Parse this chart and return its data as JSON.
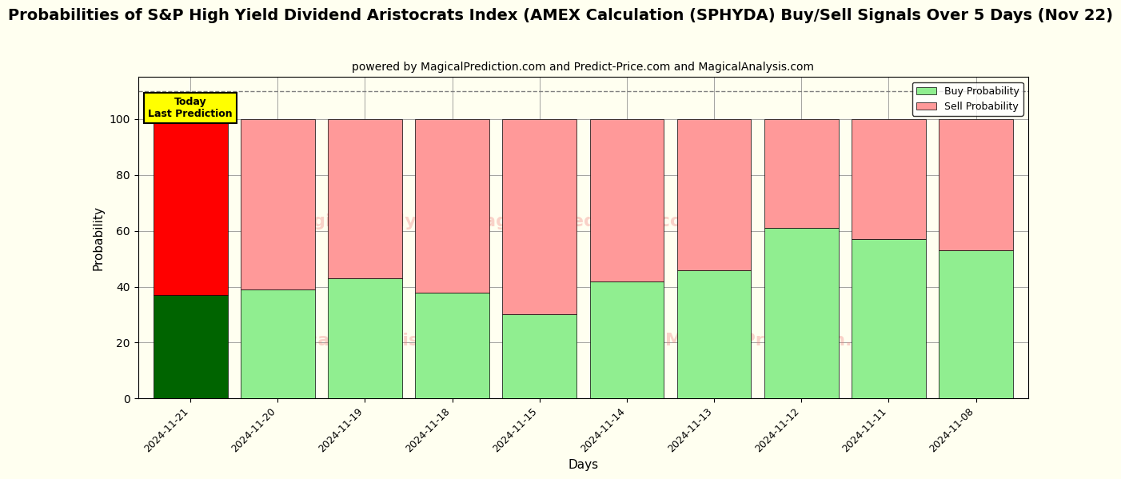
{
  "title": "Probabilities of S&P High Yield Dividend Aristocrats Index (AMEX Calculation (SPHYDA) Buy/Sell Signals Over 5 Days (Nov 22)",
  "subtitle": "powered by MagicalPrediction.com and Predict-Price.com and MagicalAnalysis.com",
  "xlabel": "Days",
  "ylabel": "Probability",
  "categories": [
    "2024-11-21",
    "2024-11-20",
    "2024-11-19",
    "2024-11-18",
    "2024-11-15",
    "2024-11-14",
    "2024-11-13",
    "2024-11-12",
    "2024-11-11",
    "2024-11-08"
  ],
  "buy_values": [
    37,
    39,
    43,
    38,
    30,
    42,
    46,
    61,
    57,
    53
  ],
  "sell_values": [
    63,
    61,
    57,
    62,
    70,
    58,
    54,
    39,
    43,
    47
  ],
  "buy_colors": [
    "#006400",
    "#90EE90",
    "#90EE90",
    "#90EE90",
    "#90EE90",
    "#90EE90",
    "#90EE90",
    "#90EE90",
    "#90EE90",
    "#90EE90"
  ],
  "sell_colors": [
    "#FF0000",
    "#FF9999",
    "#FF9999",
    "#FF9999",
    "#FF9999",
    "#FF9999",
    "#FF9999",
    "#FF9999",
    "#FF9999",
    "#FF9999"
  ],
  "today_label": "Today\nLast Prediction",
  "today_bg": "#FFFF00",
  "legend_buy_color": "#90EE90",
  "legend_sell_color": "#FF9999",
  "buy_label": "Buy Probability",
  "sell_label": "Sell Probability",
  "ylim": [
    0,
    115
  ],
  "yticks": [
    0,
    20,
    40,
    60,
    80,
    100
  ],
  "watermark1": "MagicalAnalysis.com",
  "watermark2": "MagicalPrediction.com",
  "title_fontsize": 14,
  "subtitle_fontsize": 10,
  "bar_width": 0.85,
  "bg_color": "#FFFFF0",
  "figsize": [
    12,
    6
  ]
}
